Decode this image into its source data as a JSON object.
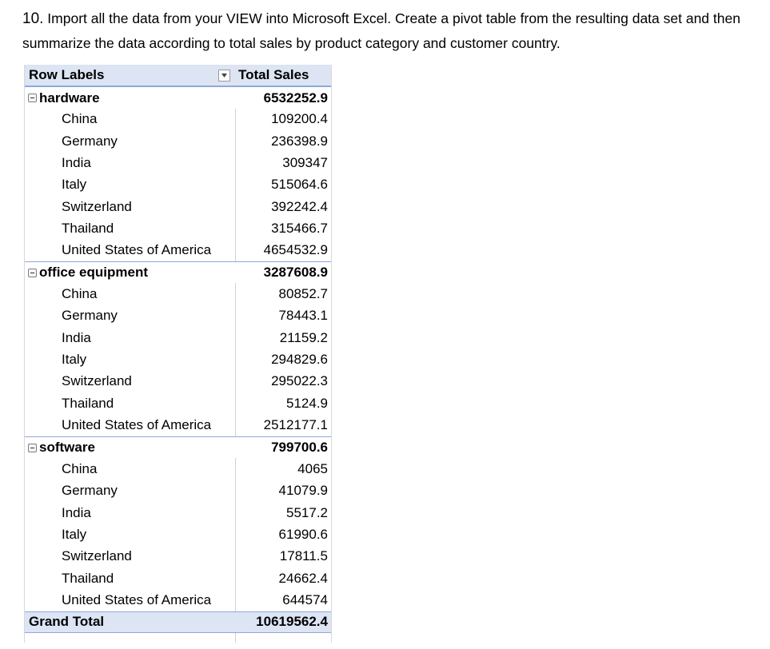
{
  "instructions": {
    "number": "10.",
    "text": "Import all the data from your VIEW into Microsoft Excel. Create a pivot table from the resulting data set and then summarize the data according to total sales by product category and customer country."
  },
  "pivot": {
    "header": {
      "row_labels": "Row Labels",
      "total_sales": "Total Sales"
    },
    "categories": [
      {
        "name": "hardware",
        "total": "6532252.9",
        "items": [
          {
            "country": "China",
            "value": "109200.4"
          },
          {
            "country": "Germany",
            "value": "236398.9"
          },
          {
            "country": "India",
            "value": "309347"
          },
          {
            "country": "Italy",
            "value": "515064.6"
          },
          {
            "country": "Switzerland",
            "value": "392242.4"
          },
          {
            "country": "Thailand",
            "value": "315466.7"
          },
          {
            "country": "United States of America",
            "value": "4654532.9"
          }
        ]
      },
      {
        "name": "office equipment",
        "total": "3287608.9",
        "items": [
          {
            "country": "China",
            "value": "80852.7"
          },
          {
            "country": "Germany",
            "value": "78443.1"
          },
          {
            "country": "India",
            "value": "21159.2"
          },
          {
            "country": "Italy",
            "value": "294829.6"
          },
          {
            "country": "Switzerland",
            "value": "295022.3"
          },
          {
            "country": "Thailand",
            "value": "5124.9"
          },
          {
            "country": "United States of America",
            "value": "2512177.1"
          }
        ]
      },
      {
        "name": "software",
        "total": "799700.6",
        "items": [
          {
            "country": "China",
            "value": "4065"
          },
          {
            "country": "Germany",
            "value": "41079.9"
          },
          {
            "country": "India",
            "value": "5517.2"
          },
          {
            "country": "Italy",
            "value": "61990.6"
          },
          {
            "country": "Switzerland",
            "value": "17811.5"
          },
          {
            "country": "Thailand",
            "value": "24662.4"
          },
          {
            "country": "United States of America",
            "value": "644574"
          }
        ]
      }
    ],
    "grand_total": {
      "label": "Grand Total",
      "value": "10619562.4"
    }
  }
}
